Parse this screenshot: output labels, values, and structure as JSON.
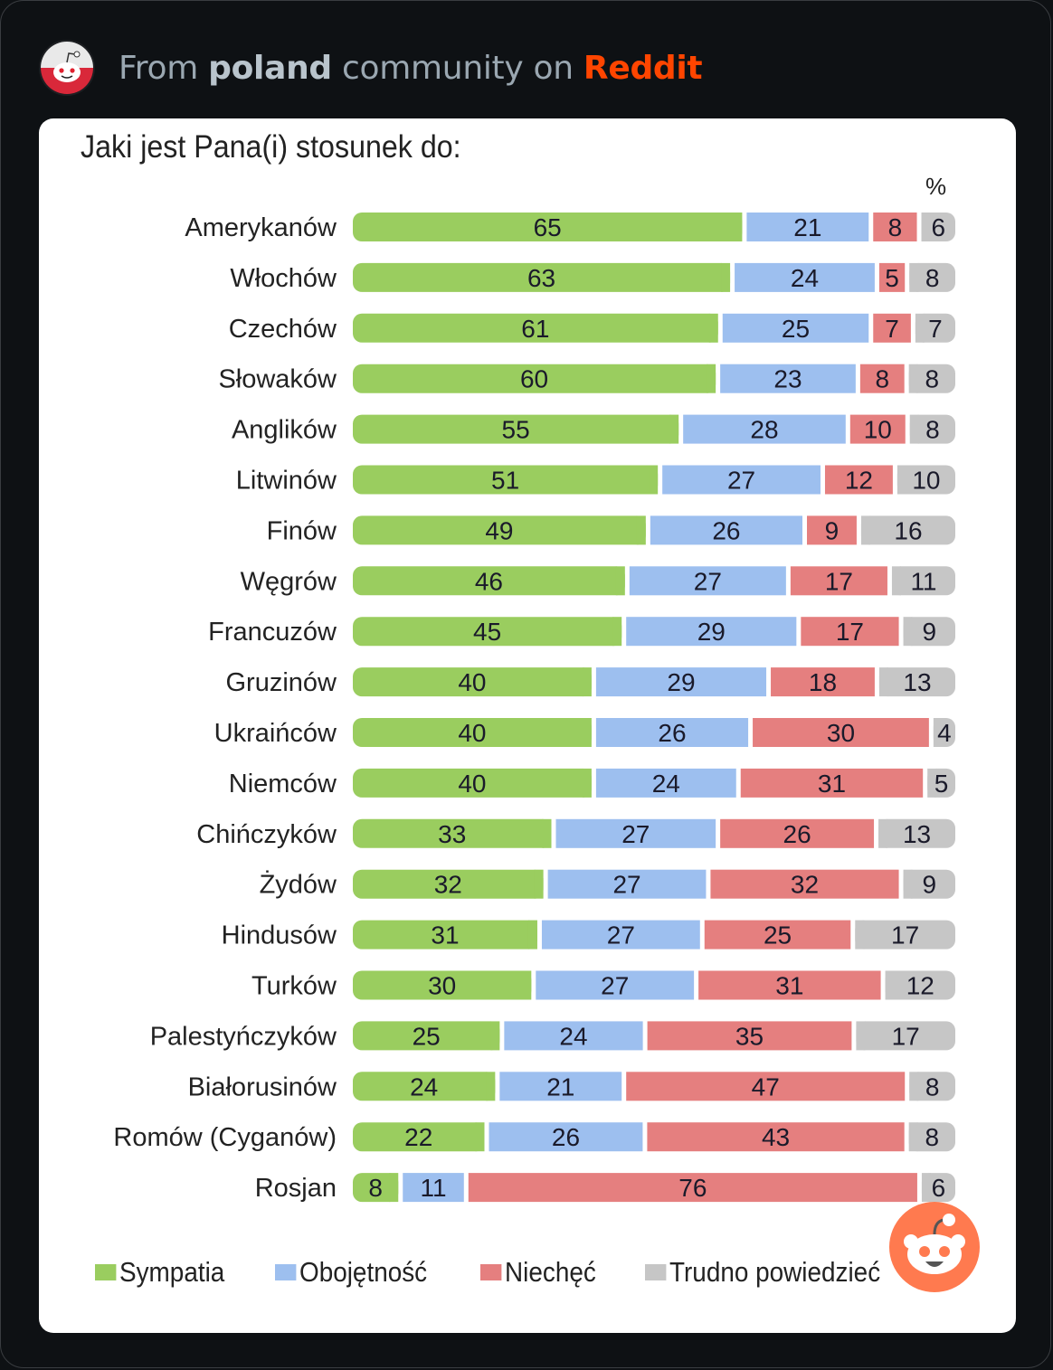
{
  "header": {
    "prefix": "From",
    "community": "poland",
    "middle": "community on",
    "brand": "Reddit"
  },
  "icons": {
    "avatar": "reddit-snoo-poland-flag-icon",
    "watermark": "reddit-snoo-icon"
  },
  "chart_data": {
    "type": "bar",
    "orientation": "horizontal-stacked-100",
    "title": "Jaki jest Pana(i) stosunek do:",
    "unit_label": "%",
    "xlabel": "",
    "ylabel": "",
    "xlim": [
      0,
      100
    ],
    "grid": false,
    "legend_position": "bottom",
    "categories": [
      "Amerykanów",
      "Włochów",
      "Czechów",
      "Słowaków",
      "Anglików",
      "Litwinów",
      "Finów",
      "Węgrów",
      "Francuzów",
      "Gruzinów",
      "Ukraińców",
      "Niemców",
      "Chińczyków",
      "Żydów",
      "Hindusów",
      "Turków",
      "Palestyńczyków",
      "Białorusinów",
      "Romów (Cyganów)",
      "Rosjan"
    ],
    "series": [
      {
        "name": "Sympatia",
        "color": "#9acd5f",
        "values": [
          65,
          63,
          61,
          60,
          55,
          51,
          49,
          46,
          45,
          40,
          40,
          40,
          33,
          32,
          31,
          30,
          25,
          24,
          22,
          8
        ]
      },
      {
        "name": "Obojętność",
        "color": "#9dbfef",
        "values": [
          21,
          24,
          25,
          23,
          28,
          27,
          26,
          27,
          29,
          29,
          26,
          24,
          27,
          27,
          27,
          27,
          24,
          21,
          26,
          11
        ]
      },
      {
        "name": "Niechęć",
        "color": "#e57f7f",
        "values": [
          8,
          5,
          7,
          8,
          10,
          12,
          9,
          17,
          17,
          18,
          30,
          31,
          26,
          32,
          25,
          31,
          35,
          47,
          43,
          76
        ]
      },
      {
        "name": "Trudno powiedzieć",
        "color": "#c6c6c6",
        "values": [
          6,
          8,
          7,
          8,
          8,
          10,
          16,
          11,
          9,
          13,
          4,
          5,
          13,
          9,
          17,
          12,
          17,
          8,
          8,
          6
        ]
      }
    ]
  }
}
